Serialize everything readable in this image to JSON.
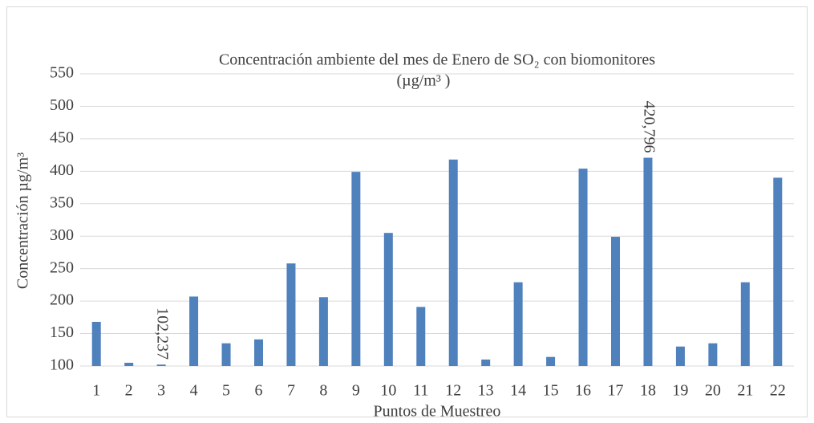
{
  "chart_data": {
    "type": "bar",
    "title": [
      "Concentración ambiente del mes de Enero de SO₂ con biomonitores",
      "(µg/m³ )"
    ],
    "x_label": "Puntos de Muestreo",
    "y_label": "Concentración µg/m³",
    "categories": [
      "1",
      "2",
      "3",
      "4",
      "5",
      "6",
      "7",
      "8",
      "9",
      "10",
      "11",
      "12",
      "13",
      "14",
      "15",
      "16",
      "17",
      "18",
      "19",
      "20",
      "21",
      "22"
    ],
    "values": [
      168,
      105,
      102.237,
      207,
      135,
      141,
      258,
      206,
      399,
      305,
      191,
      418,
      110,
      229,
      114,
      404,
      299,
      420.796,
      130,
      135,
      229,
      390
    ],
    "value_labels": [
      null,
      null,
      "102,237",
      null,
      null,
      null,
      null,
      null,
      null,
      null,
      null,
      null,
      null,
      null,
      null,
      null,
      null,
      "420,796",
      null,
      null,
      null,
      null
    ],
    "color": "#4f81bd",
    "ylim": [
      100,
      550
    ],
    "yticks": [
      100,
      150,
      200,
      250,
      300,
      350,
      400,
      450,
      500,
      550
    ],
    "grid": true
  }
}
